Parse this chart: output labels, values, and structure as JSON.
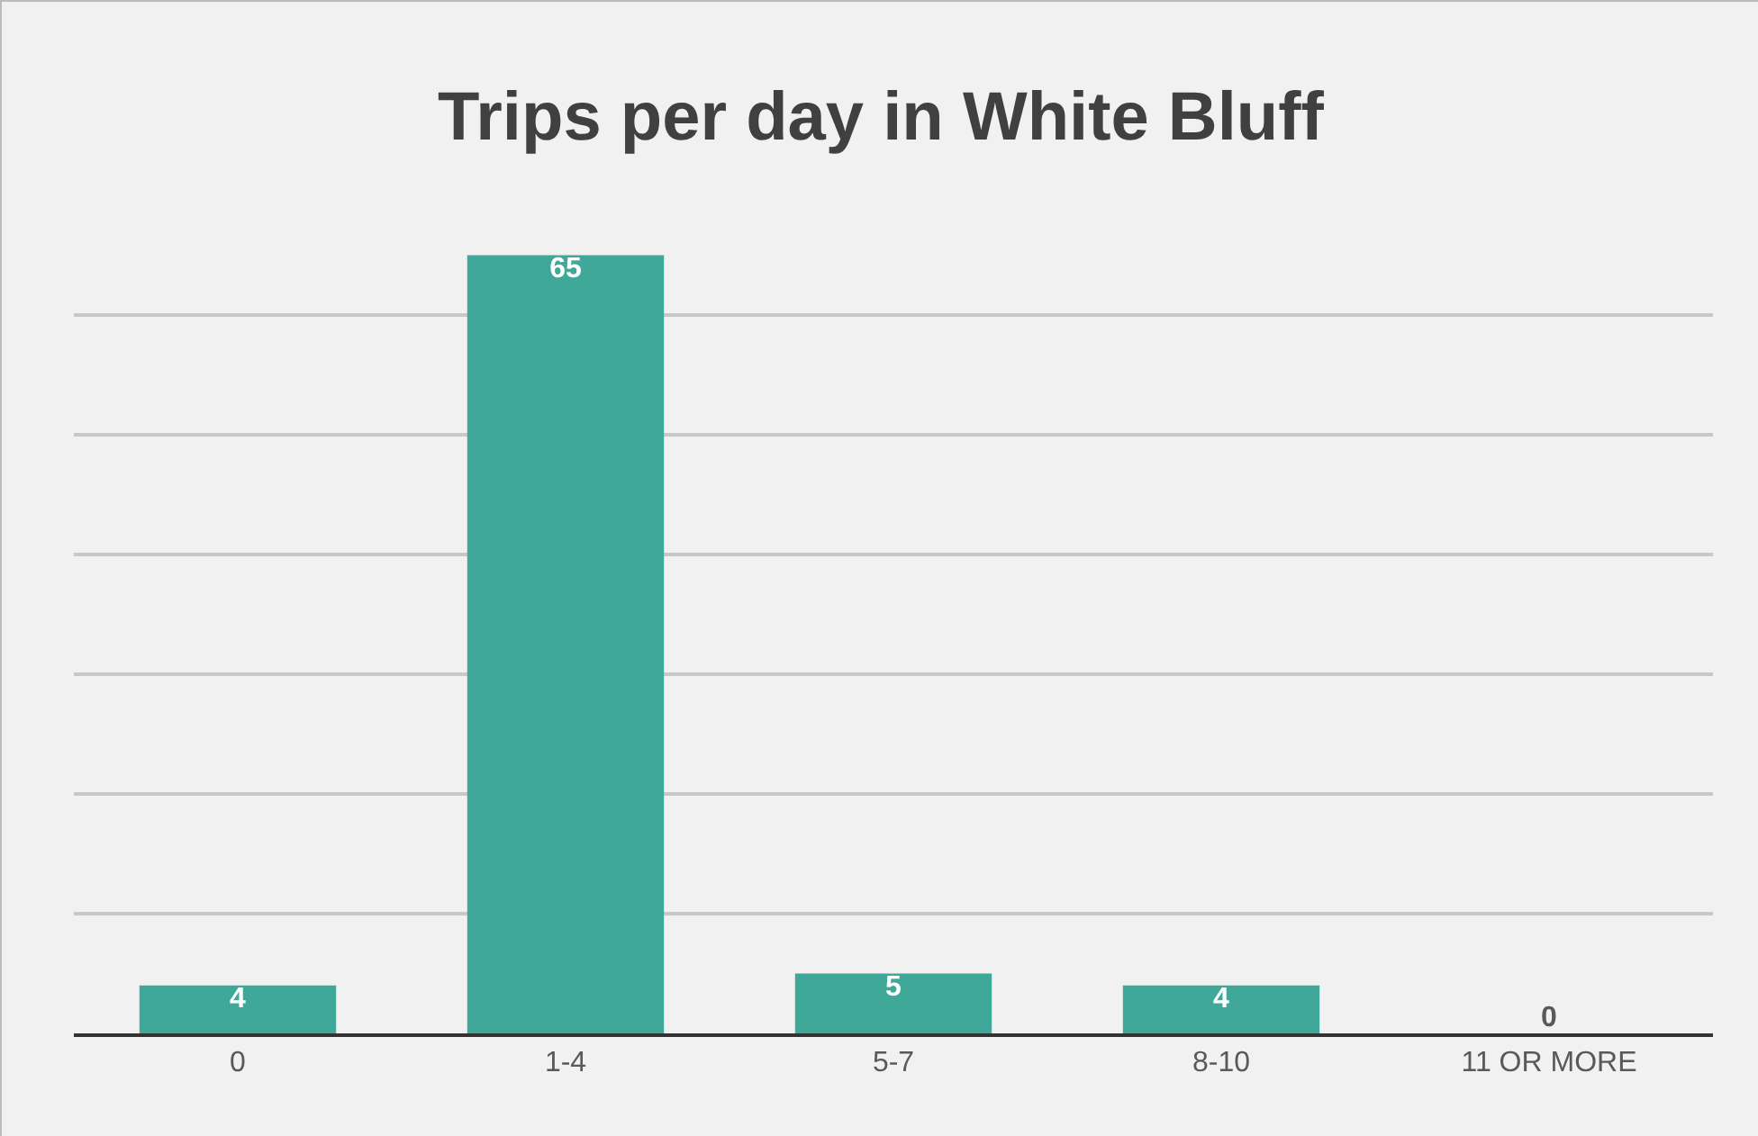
{
  "chart_data": {
    "type": "bar",
    "title": "Trips per day in White Bluff",
    "categories": [
      "0",
      "1-4",
      "5-7",
      "8-10",
      "11 OR MORE"
    ],
    "values": [
      4,
      65,
      5,
      4,
      0
    ],
    "color": "#3fa898",
    "yticks": [
      {
        "value": 0,
        "label": null
      },
      {
        "value": 10,
        "label": null
      },
      {
        "value": 20,
        "label": null
      },
      {
        "value": 30,
        "label": null
      },
      {
        "value": 40,
        "label": null
      },
      {
        "value": 50,
        "label": null
      },
      {
        "value": 60,
        "label": null
      }
    ],
    "grid": "y",
    "tick_labels": "x",
    "data_labels": true
  }
}
